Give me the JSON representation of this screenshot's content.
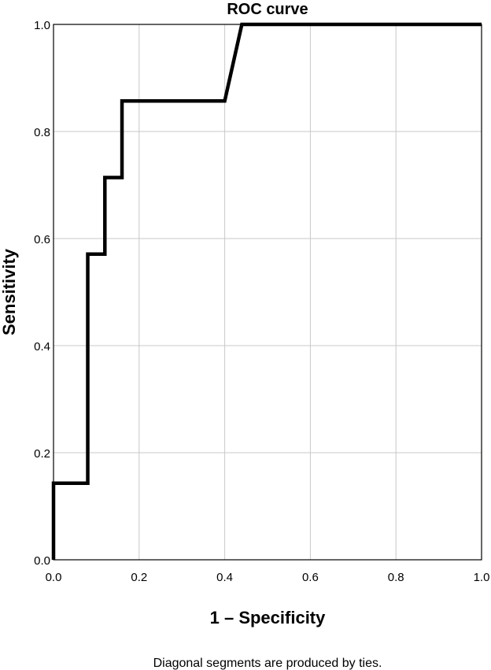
{
  "chart_data": {
    "type": "line",
    "title": "ROC curve",
    "xlabel": "1 – Specificity",
    "ylabel": "Sensitivity",
    "xlim": [
      0,
      1
    ],
    "ylim": [
      0,
      1
    ],
    "x_ticks": [
      "0.0",
      "0.2",
      "0.4",
      "0.6",
      "0.8",
      "1.0"
    ],
    "y_ticks": [
      "0.0",
      "0.2",
      "0.4",
      "0.6",
      "0.8",
      "1.0"
    ],
    "grid": true,
    "series": [
      {
        "color": "#000000",
        "points": [
          [
            0.0,
            0.0
          ],
          [
            0.0,
            0.143
          ],
          [
            0.08,
            0.143
          ],
          [
            0.08,
            0.571
          ],
          [
            0.12,
            0.571
          ],
          [
            0.12,
            0.714
          ],
          [
            0.16,
            0.714
          ],
          [
            0.16,
            0.857
          ],
          [
            0.4,
            0.857
          ],
          [
            0.44,
            1.0
          ],
          [
            1.0,
            1.0
          ]
        ]
      }
    ],
    "footnote": "Diagonal segments are produced by ties."
  }
}
